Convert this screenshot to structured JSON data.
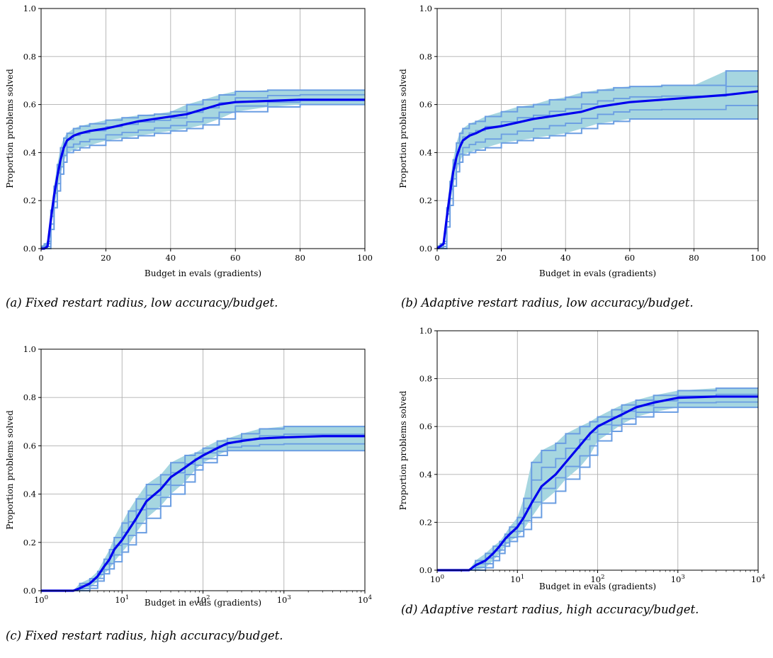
{
  "figure": {
    "captions": [
      "(a) Fixed restart radius, low accuracy/budget.",
      "(b) Adaptive restart radius, low accuracy/budget.",
      "(c) Fixed restart radius, high accuracy/budget.",
      "(d) Adaptive restart radius, high accuracy/budget."
    ]
  },
  "colors": {
    "fill": "#a6d6e0",
    "edge": "#6a9de2",
    "median": "#0000ee",
    "grid": "#b0b0b0"
  },
  "chart_data": [
    {
      "type": "line",
      "title": "",
      "xlabel": "Budget in evals (gradients)",
      "ylabel": "Proportion problems solved",
      "xscale": "linear",
      "xlim": [
        0,
        100
      ],
      "ylim": [
        0,
        1
      ],
      "xticks": [
        "0",
        "20",
        "40",
        "60",
        "80",
        "100"
      ],
      "yticks": [
        "0.0",
        "0.2",
        "0.4",
        "0.6",
        "0.8",
        "1.0"
      ],
      "grid": true,
      "median": {
        "x": [
          0,
          1,
          2,
          3,
          4,
          5,
          6,
          7,
          8,
          10,
          12,
          15,
          20,
          25,
          30,
          35,
          40,
          45,
          50,
          55,
          60,
          70,
          80,
          90,
          100
        ],
        "y": [
          0,
          0,
          0.01,
          0.12,
          0.22,
          0.3,
          0.37,
          0.42,
          0.45,
          0.47,
          0.48,
          0.49,
          0.5,
          0.515,
          0.53,
          0.54,
          0.55,
          0.56,
          0.58,
          0.6,
          0.61,
          0.615,
          0.62,
          0.62,
          0.62
        ]
      },
      "band": {
        "x": [
          0,
          1,
          2,
          3,
          4,
          5,
          6,
          7,
          8,
          10,
          12,
          15,
          20,
          25,
          30,
          35,
          40,
          45,
          50,
          55,
          60,
          70,
          80,
          90,
          100
        ],
        "upper": [
          0.01,
          0.02,
          0.03,
          0.16,
          0.26,
          0.35,
          0.42,
          0.46,
          0.48,
          0.5,
          0.51,
          0.52,
          0.535,
          0.545,
          0.555,
          0.56,
          0.57,
          0.6,
          0.62,
          0.64,
          0.655,
          0.66,
          0.66,
          0.66,
          0.66
        ],
        "lower": [
          0,
          0,
          0,
          0.08,
          0.17,
          0.24,
          0.31,
          0.36,
          0.4,
          0.41,
          0.42,
          0.43,
          0.45,
          0.46,
          0.47,
          0.48,
          0.49,
          0.5,
          0.515,
          0.54,
          0.57,
          0.59,
          0.6,
          0.6,
          0.6
        ]
      }
    },
    {
      "type": "line",
      "title": "",
      "xlabel": "Budget in evals (gradients)",
      "ylabel": "Proportion problems solved",
      "xscale": "linear",
      "xlim": [
        0,
        100
      ],
      "ylim": [
        0,
        1
      ],
      "xticks": [
        "0",
        "20",
        "40",
        "60",
        "80",
        "100"
      ],
      "yticks": [
        "0.0",
        "0.2",
        "0.4",
        "0.6",
        "0.8",
        "1.0"
      ],
      "grid": true,
      "median": {
        "x": [
          0,
          1,
          2,
          3,
          4,
          5,
          6,
          7,
          8,
          10,
          12,
          15,
          20,
          25,
          30,
          35,
          40,
          45,
          50,
          55,
          60,
          70,
          80,
          90,
          100
        ],
        "y": [
          0,
          0.01,
          0.02,
          0.13,
          0.23,
          0.32,
          0.38,
          0.42,
          0.45,
          0.47,
          0.48,
          0.5,
          0.51,
          0.525,
          0.54,
          0.55,
          0.56,
          0.57,
          0.59,
          0.6,
          0.61,
          0.62,
          0.63,
          0.64,
          0.655
        ]
      },
      "band": {
        "x": [
          0,
          1,
          2,
          3,
          4,
          5,
          6,
          7,
          8,
          10,
          12,
          15,
          20,
          25,
          30,
          35,
          40,
          45,
          50,
          55,
          60,
          70,
          80,
          90,
          100
        ],
        "upper": [
          0.01,
          0.02,
          0.03,
          0.17,
          0.28,
          0.37,
          0.44,
          0.48,
          0.5,
          0.52,
          0.53,
          0.55,
          0.57,
          0.59,
          0.6,
          0.62,
          0.63,
          0.65,
          0.66,
          0.67,
          0.675,
          0.68,
          0.68,
          0.74,
          0.74
        ],
        "lower": [
          0,
          0,
          0,
          0.09,
          0.18,
          0.26,
          0.32,
          0.36,
          0.39,
          0.4,
          0.41,
          0.42,
          0.44,
          0.45,
          0.46,
          0.47,
          0.48,
          0.5,
          0.52,
          0.53,
          0.54,
          0.54,
          0.54,
          0.54,
          0.54
        ]
      }
    },
    {
      "type": "line",
      "title": "",
      "xlabel": "Budget in evals (gradients)",
      "ylabel": "Proportion problems solved",
      "xscale": "log",
      "xlim": [
        1,
        10000
      ],
      "ylim": [
        0,
        1
      ],
      "xticks": [
        "10^0",
        "10^1",
        "10^2",
        "10^3",
        "10^4"
      ],
      "yticks": [
        "0.0",
        "0.2",
        "0.4",
        "0.6",
        "0.8",
        "1.0"
      ],
      "grid": true,
      "median": {
        "x": [
          1,
          2,
          2.5,
          3,
          4,
          5,
          6,
          7,
          8,
          10,
          12,
          15,
          20,
          30,
          40,
          60,
          80,
          100,
          150,
          200,
          300,
          500,
          1000,
          3000,
          10000
        ],
        "y": [
          0,
          0,
          0,
          0.01,
          0.03,
          0.06,
          0.1,
          0.13,
          0.17,
          0.21,
          0.25,
          0.3,
          0.37,
          0.42,
          0.47,
          0.51,
          0.54,
          0.56,
          0.59,
          0.61,
          0.62,
          0.63,
          0.635,
          0.64,
          0.64
        ]
      },
      "band": {
        "x": [
          1,
          2,
          2.5,
          3,
          4,
          5,
          6,
          7,
          8,
          10,
          12,
          15,
          20,
          30,
          40,
          60,
          80,
          100,
          150,
          200,
          300,
          500,
          1000,
          3000,
          10000
        ],
        "upper": [
          0,
          0,
          0,
          0.03,
          0.05,
          0.08,
          0.13,
          0.17,
          0.22,
          0.28,
          0.33,
          0.38,
          0.44,
          0.48,
          0.53,
          0.56,
          0.57,
          0.59,
          0.62,
          0.63,
          0.65,
          0.67,
          0.68,
          0.68,
          0.68
        ],
        "lower": [
          0,
          0,
          0,
          0,
          0.01,
          0.04,
          0.07,
          0.09,
          0.12,
          0.16,
          0.19,
          0.24,
          0.3,
          0.35,
          0.4,
          0.45,
          0.5,
          0.53,
          0.56,
          0.58,
          0.58,
          0.58,
          0.58,
          0.58,
          0.58
        ]
      }
    },
    {
      "type": "line",
      "title": "",
      "xlabel": "Budget in evals (gradients)",
      "ylabel": "Proportion problems solved",
      "xscale": "log",
      "xlim": [
        1,
        10000
      ],
      "ylim": [
        0,
        1
      ],
      "xticks": [
        "10^0",
        "10^1",
        "10^2",
        "10^3",
        "10^4"
      ],
      "yticks": [
        "0.0",
        "0.2",
        "0.4",
        "0.6",
        "0.8",
        "1.0"
      ],
      "grid": true,
      "median": {
        "x": [
          1,
          2,
          2.5,
          3,
          4,
          5,
          6,
          7,
          8,
          10,
          12,
          15,
          20,
          30,
          40,
          60,
          80,
          100,
          150,
          200,
          300,
          500,
          1000,
          3000,
          10000
        ],
        "y": [
          0,
          0,
          0,
          0.02,
          0.04,
          0.07,
          0.1,
          0.13,
          0.15,
          0.18,
          0.22,
          0.28,
          0.35,
          0.4,
          0.45,
          0.52,
          0.57,
          0.6,
          0.63,
          0.65,
          0.68,
          0.7,
          0.72,
          0.725,
          0.725
        ]
      },
      "band": {
        "x": [
          1,
          2,
          2.5,
          3,
          4,
          5,
          6,
          7,
          8,
          10,
          12,
          15,
          20,
          30,
          40,
          60,
          80,
          100,
          150,
          200,
          300,
          500,
          1000,
          3000,
          10000
        ],
        "upper": [
          0,
          0,
          0,
          0.04,
          0.07,
          0.1,
          0.12,
          0.15,
          0.18,
          0.22,
          0.3,
          0.45,
          0.5,
          0.53,
          0.57,
          0.6,
          0.62,
          0.64,
          0.67,
          0.69,
          0.71,
          0.73,
          0.75,
          0.76,
          0.76
        ],
        "lower": [
          0,
          0,
          0,
          0,
          0.01,
          0.04,
          0.07,
          0.1,
          0.12,
          0.14,
          0.17,
          0.22,
          0.28,
          0.33,
          0.38,
          0.43,
          0.48,
          0.54,
          0.58,
          0.61,
          0.64,
          0.66,
          0.68,
          0.68,
          0.68
        ]
      }
    }
  ]
}
